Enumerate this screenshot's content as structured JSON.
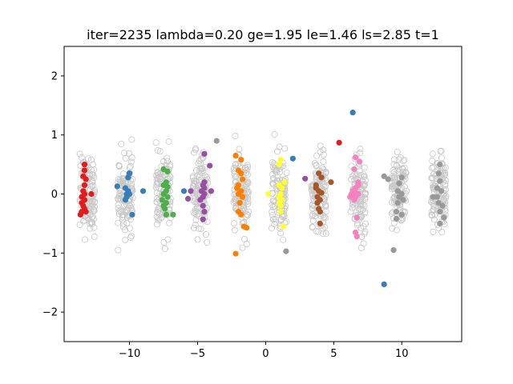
{
  "chart_data": {
    "type": "scatter",
    "title": "iter=2235  lambda=0.20  ge=1.95  le=1.46  ls=2.85  t=1",
    "xlabel": "",
    "ylabel": "",
    "xlim": [
      -14.8,
      14.4
    ],
    "ylim": [
      -2.5,
      2.5
    ],
    "xticks": [
      -10,
      -5,
      0,
      5,
      10
    ],
    "xtick_labels": [
      "−10",
      "−5",
      "0",
      "5",
      "10"
    ],
    "yticks": [
      -2,
      -1,
      0,
      1,
      2
    ],
    "ytick_labels": [
      "−2",
      "−1",
      "0",
      "1",
      "2"
    ],
    "grid": false,
    "background_points": {
      "description_of_marks": "hollow light-grey circles forming 10 vertical clusters",
      "edge_color": "#c8c8c8",
      "clusters": [
        {
          "x_center": -13.1,
          "x_spread": 0.55,
          "y_spread": 0.32,
          "count": 120
        },
        {
          "x_center": -10.3,
          "x_spread": 0.55,
          "y_spread": 0.32,
          "count": 120
        },
        {
          "x_center": -7.5,
          "x_spread": 0.55,
          "y_spread": 0.32,
          "count": 120
        },
        {
          "x_center": -4.8,
          "x_spread": 0.55,
          "y_spread": 0.32,
          "count": 120
        },
        {
          "x_center": -1.8,
          "x_spread": 0.55,
          "y_spread": 0.32,
          "count": 120
        },
        {
          "x_center": 1.0,
          "x_spread": 0.55,
          "y_spread": 0.32,
          "count": 120
        },
        {
          "x_center": 3.9,
          "x_spread": 0.55,
          "y_spread": 0.32,
          "count": 120
        },
        {
          "x_center": 6.8,
          "x_spread": 0.55,
          "y_spread": 0.32,
          "count": 120
        },
        {
          "x_center": 9.8,
          "x_spread": 0.55,
          "y_spread": 0.32,
          "count": 120
        },
        {
          "x_center": 12.7,
          "x_spread": 0.55,
          "y_spread": 0.32,
          "count": 120
        }
      ]
    },
    "series": [
      {
        "color": "#e41a1c",
        "points": [
          [
            -13.3,
            0.5
          ],
          [
            -13.3,
            0.4
          ],
          [
            -13.4,
            0.3
          ],
          [
            -13.2,
            0.25
          ],
          [
            -13.3,
            0.15
          ],
          [
            -13.4,
            0.05
          ],
          [
            -13.5,
            -0.05
          ],
          [
            -13.3,
            -0.1
          ],
          [
            -13.5,
            -0.15
          ],
          [
            -13.4,
            -0.2
          ],
          [
            -13.3,
            -0.25
          ],
          [
            -13.5,
            -0.3
          ],
          [
            -13.6,
            -0.35
          ],
          [
            -12.8,
            0.0
          ],
          [
            -13.2,
            -0.3
          ],
          [
            -13.3,
            0.0
          ],
          [
            5.4,
            0.87
          ]
        ]
      },
      {
        "color": "#377eb8",
        "points": [
          [
            -10.0,
            0.35
          ],
          [
            -10.1,
            0.28
          ],
          [
            -10.3,
            0.1
          ],
          [
            -10.1,
            0.05
          ],
          [
            -10.2,
            0.0
          ],
          [
            -10.0,
            0.0
          ],
          [
            -10.2,
            -0.05
          ],
          [
            -10.3,
            -0.1
          ],
          [
            -9.8,
            -0.35
          ],
          [
            -10.9,
            0.13
          ],
          [
            -9.0,
            0.05
          ],
          [
            -6.0,
            0.05
          ],
          [
            2.0,
            0.6
          ],
          [
            6.4,
            1.38
          ],
          [
            8.7,
            -1.53
          ]
        ]
      },
      {
        "color": "#4daf4a",
        "points": [
          [
            -7.5,
            0.42
          ],
          [
            -7.2,
            0.38
          ],
          [
            -7.3,
            0.2
          ],
          [
            -7.5,
            0.15
          ],
          [
            -7.2,
            0.12
          ],
          [
            -7.3,
            0.05
          ],
          [
            -7.5,
            0.0
          ],
          [
            -7.2,
            -0.05
          ],
          [
            -7.6,
            -0.1
          ],
          [
            -7.3,
            -0.15
          ],
          [
            -7.5,
            -0.2
          ],
          [
            -7.4,
            -0.25
          ],
          [
            -7.3,
            -0.35
          ],
          [
            -6.8,
            -0.35
          ]
        ]
      },
      {
        "color": "#984ea3",
        "points": [
          [
            -4.5,
            0.68
          ],
          [
            -4.1,
            0.48
          ],
          [
            -4.5,
            0.2
          ],
          [
            -4.6,
            0.15
          ],
          [
            -4.5,
            0.1
          ],
          [
            -4.7,
            0.05
          ],
          [
            -4.5,
            0.0
          ],
          [
            -4.6,
            -0.05
          ],
          [
            -4.8,
            -0.1
          ],
          [
            -4.6,
            -0.2
          ],
          [
            -4.5,
            -0.3
          ],
          [
            -4.6,
            -0.43
          ],
          [
            -4.0,
            0.05
          ],
          [
            -5.7,
            -0.08
          ],
          [
            -5.5,
            0.05
          ],
          [
            2.9,
            0.26
          ]
        ]
      },
      {
        "color": "#ff7f00",
        "points": [
          [
            -2.2,
            0.65
          ],
          [
            -1.8,
            0.58
          ],
          [
            -2.0,
            0.4
          ],
          [
            -1.8,
            0.35
          ],
          [
            -1.7,
            0.25
          ],
          [
            -2.0,
            0.15
          ],
          [
            -1.8,
            0.05
          ],
          [
            -2.0,
            0.0
          ],
          [
            -1.7,
            -0.05
          ],
          [
            -1.9,
            -0.15
          ],
          [
            -2.0,
            -0.3
          ],
          [
            -1.8,
            -0.35
          ],
          [
            -1.6,
            -0.55
          ],
          [
            -1.4,
            -0.57
          ],
          [
            -2.2,
            -1.01
          ],
          [
            -2.1,
            0.1
          ]
        ]
      },
      {
        "color": "#ffff33",
        "points": [
          [
            1.1,
            0.58
          ],
          [
            1.0,
            0.5
          ],
          [
            1.4,
            0.2
          ],
          [
            1.0,
            0.15
          ],
          [
            1.2,
            0.1
          ],
          [
            1.1,
            0.0
          ],
          [
            1.0,
            -0.05
          ],
          [
            1.2,
            -0.1
          ],
          [
            1.0,
            -0.15
          ],
          [
            1.1,
            -0.2
          ],
          [
            1.1,
            -0.3
          ],
          [
            1.3,
            -0.55
          ],
          [
            0.2,
            0.0
          ]
        ]
      },
      {
        "color": "#a65628",
        "points": [
          [
            3.9,
            0.35
          ],
          [
            4.1,
            0.28
          ],
          [
            3.7,
            0.15
          ],
          [
            3.9,
            0.05
          ],
          [
            4.1,
            0.02
          ],
          [
            3.8,
            -0.05
          ],
          [
            4.0,
            -0.1
          ],
          [
            3.8,
            -0.15
          ],
          [
            3.9,
            -0.25
          ],
          [
            4.0,
            -0.3
          ],
          [
            4.0,
            -0.5
          ],
          [
            4.8,
            0.2
          ],
          [
            3.7,
            0.1
          ]
        ]
      },
      {
        "color": "#f781bf",
        "points": [
          [
            6.6,
            0.62
          ],
          [
            6.9,
            0.55
          ],
          [
            6.5,
            0.42
          ],
          [
            6.8,
            0.2
          ],
          [
            6.8,
            0.15
          ],
          [
            6.6,
            0.1
          ],
          [
            6.4,
            0.05
          ],
          [
            6.6,
            0.02
          ],
          [
            6.8,
            0.0
          ],
          [
            6.3,
            0.0
          ],
          [
            6.6,
            -0.05
          ],
          [
            6.5,
            -0.1
          ],
          [
            6.7,
            -0.4
          ],
          [
            6.6,
            -0.65
          ],
          [
            6.7,
            -0.72
          ],
          [
            6.2,
            -0.05
          ]
        ]
      },
      {
        "color": "#999999",
        "points": [
          [
            8.7,
            0.3
          ],
          [
            9.0,
            0.25
          ],
          [
            10.0,
            0.28
          ],
          [
            9.8,
            0.18
          ],
          [
            9.7,
            0.05
          ],
          [
            10.0,
            0.0
          ],
          [
            9.8,
            -0.05
          ],
          [
            10.1,
            -0.1
          ],
          [
            9.7,
            -0.15
          ],
          [
            9.6,
            -0.3
          ],
          [
            9.6,
            -0.42
          ],
          [
            10.0,
            -0.35
          ],
          [
            9.4,
            -0.95
          ],
          [
            12.8,
            0.5
          ],
          [
            12.7,
            0.35
          ],
          [
            12.8,
            0.22
          ],
          [
            12.6,
            0.1
          ],
          [
            12.9,
            0.05
          ],
          [
            12.6,
            -0.05
          ],
          [
            12.3,
            -0.05
          ],
          [
            12.7,
            -0.15
          ],
          [
            13.0,
            -0.2
          ],
          [
            12.8,
            -0.3
          ],
          [
            13.1,
            -0.4
          ],
          [
            12.8,
            -0.5
          ],
          [
            -3.6,
            0.9
          ],
          [
            1.5,
            -0.97
          ]
        ]
      }
    ]
  }
}
